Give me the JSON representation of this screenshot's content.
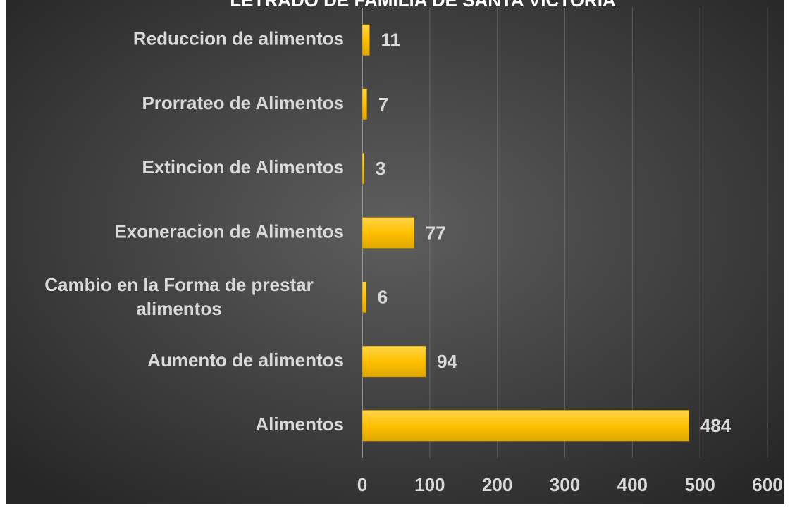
{
  "chart_data": {
    "type": "bar",
    "orientation": "horizontal",
    "title": "LETRADO DE FAMILIA DE SANTA VICTORIA",
    "categories": [
      "Reduccion de alimentos",
      "Prorrateo de Alimentos",
      "Extincion de Alimentos",
      "Exoneracion de Alimentos",
      "Cambio en la Forma de prestar alimentos",
      "Aumento de alimentos",
      "Alimentos"
    ],
    "values": [
      11,
      7,
      3,
      77,
      6,
      94,
      484
    ],
    "color": "#ffc000",
    "xlim": [
      0,
      600
    ],
    "xticks": [
      0,
      100,
      200,
      300,
      400,
      500,
      600
    ],
    "grid": true
  }
}
